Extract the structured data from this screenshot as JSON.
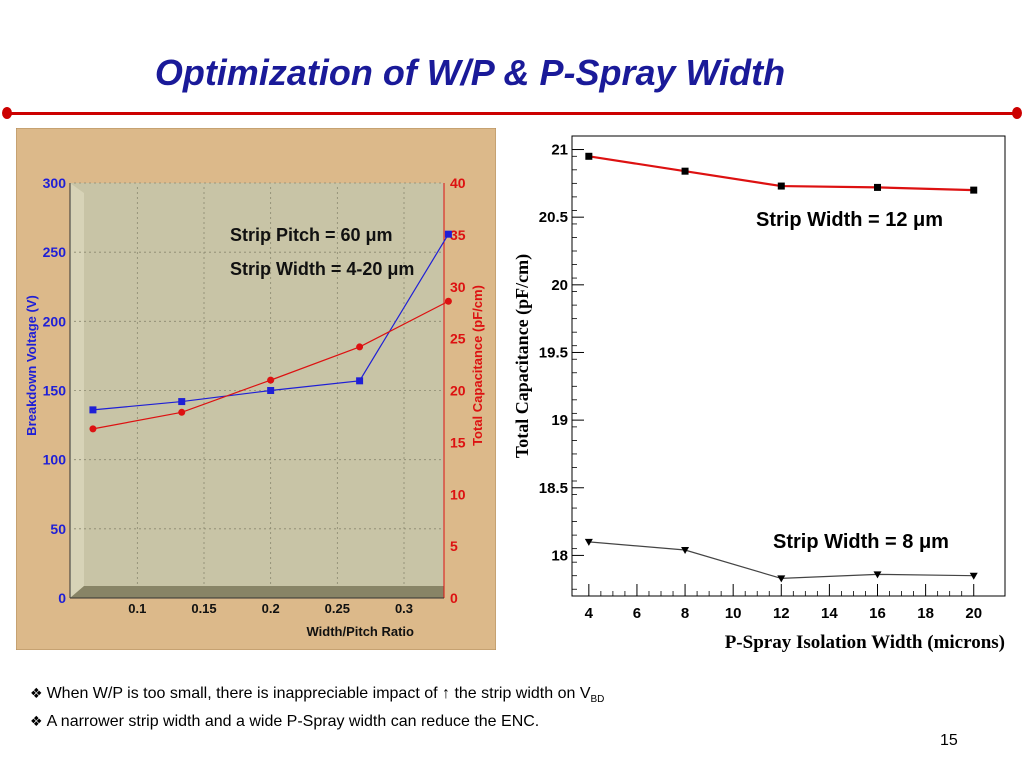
{
  "slide": {
    "title": "Optimization of W/P & P-Spray Width",
    "bullets": [
      {
        "icon": "diamond-bullet-icon",
        "prefix": "When W/P is too small, there is inappreciable impact of ↑ the strip width on V",
        "subscript": "BD"
      },
      {
        "icon": "diamond-bullet-icon",
        "prefix": "A narrower strip width and a wide P-Spray width can reduce the ENC.",
        "subscript": ""
      }
    ],
    "page_number": "15",
    "accent_colors": {
      "title": "#1a1a99",
      "rule": "#cc0000"
    }
  },
  "chart_data": [
    {
      "type": "line",
      "xlabel": "Width/Pitch Ratio",
      "x_ticks": [
        "0.1",
        "0.15",
        "0.2",
        "0.25",
        "0.3"
      ],
      "xlim": [
        0.06,
        0.33
      ],
      "y_left": {
        "label": "Breakdown Voltage (V)",
        "ylim": [
          0,
          300
        ],
        "ticks": [
          "0",
          "50",
          "100",
          "150",
          "200",
          "250",
          "300"
        ],
        "color": "#1f1fd6"
      },
      "y_right": {
        "label": "Total Capacitance (pF/cm)",
        "ylim": [
          0,
          40
        ],
        "ticks": [
          "0",
          "5",
          "10",
          "15",
          "20",
          "25",
          "30",
          "35",
          "40"
        ],
        "color": "#dd1111"
      },
      "annotations": [
        "Strip Pitch = 60 μm",
        "Strip Width = 4-20 μm"
      ],
      "grid": true,
      "series": [
        {
          "axis": "left",
          "marker": "square",
          "color": "#1f1fd6",
          "x": [
            0.0667,
            0.1333,
            0.2,
            0.2667,
            0.3333
          ],
          "values": [
            136,
            142,
            150,
            157,
            263
          ]
        },
        {
          "axis": "right",
          "marker": "circle",
          "color": "#dd1111",
          "x": [
            0.0667,
            0.1333,
            0.2,
            0.2667,
            0.3333
          ],
          "values": [
            16.3,
            17.9,
            21.0,
            24.2,
            28.6
          ]
        }
      ]
    },
    {
      "type": "line",
      "xlabel": "P-Spray Isolation Width (microns)",
      "ylabel": "Total Capacitance (pF/cm)",
      "x_ticks": [
        "4",
        "6",
        "8",
        "10",
        "12",
        "14",
        "16",
        "18",
        "20"
      ],
      "xlim": [
        3.3,
        21.3
      ],
      "y_ticks": [
        "18",
        "18.5",
        "19",
        "19.5",
        "20",
        "20.5",
        "21"
      ],
      "ylim": [
        17.7,
        21.1
      ],
      "grid": false,
      "series": [
        {
          "label": "Strip Width = 12 μm",
          "marker": "square",
          "color": "#dd1111",
          "x": [
            4,
            8,
            12,
            16,
            20
          ],
          "values": [
            20.95,
            20.84,
            20.73,
            20.72,
            20.7
          ]
        },
        {
          "label": "Strip Width = 8 μm",
          "marker": "triangle-down",
          "color": "#444444",
          "x": [
            4,
            8,
            12,
            16,
            20
          ],
          "values": [
            18.1,
            18.04,
            17.83,
            17.86,
            17.85
          ]
        }
      ]
    }
  ]
}
